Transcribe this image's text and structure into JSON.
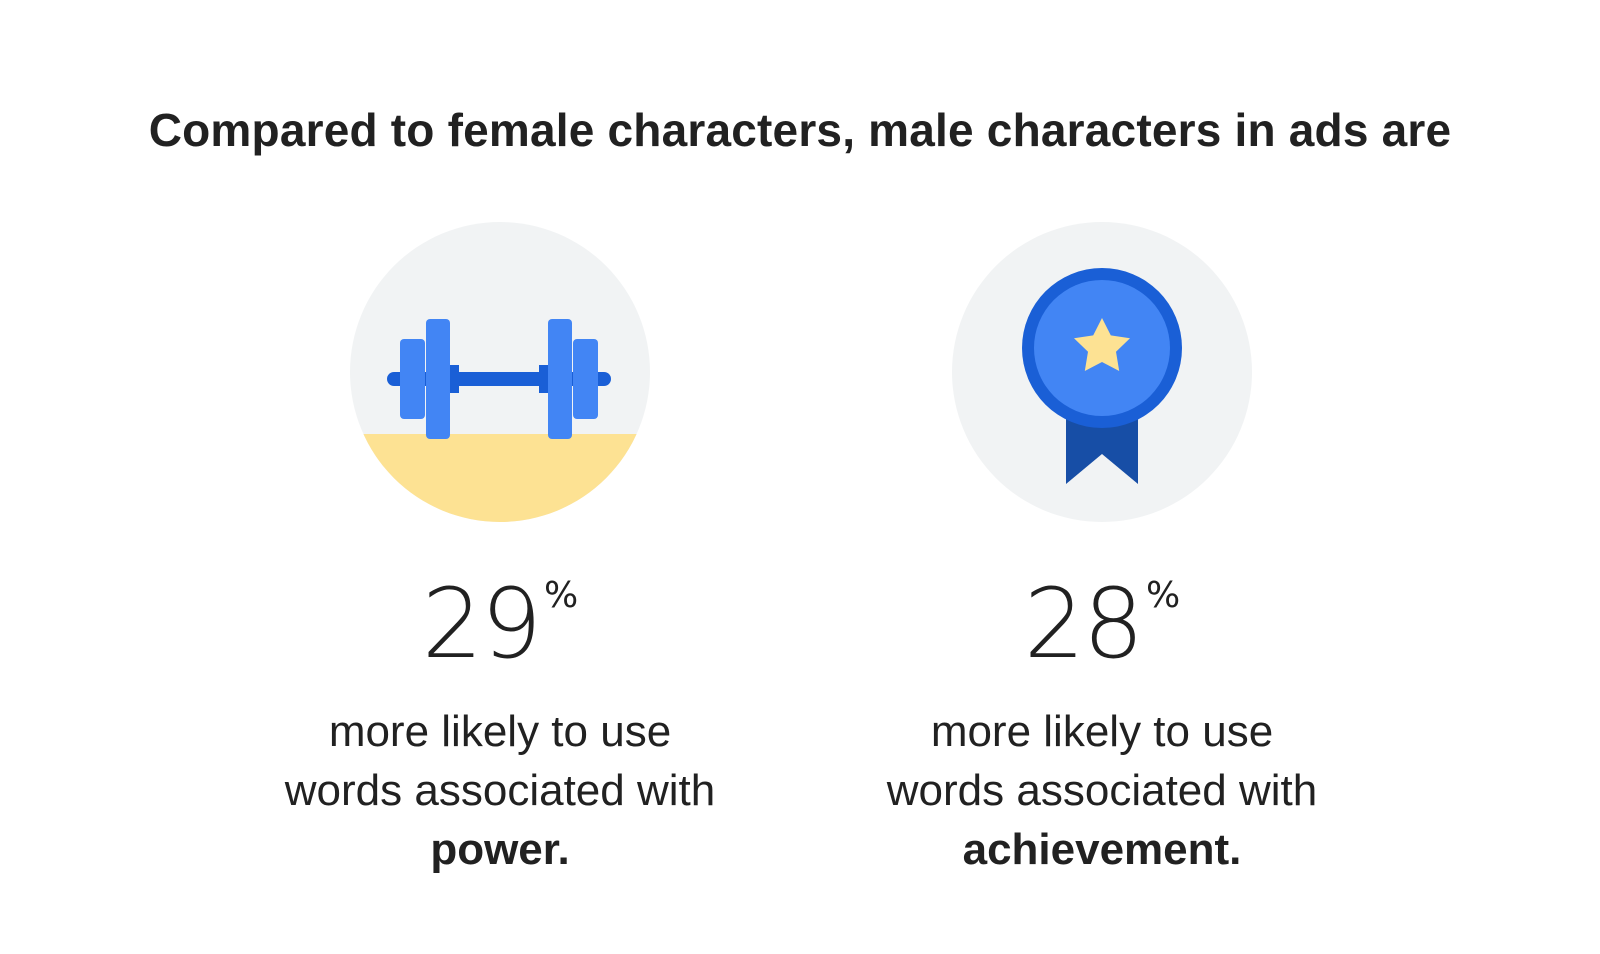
{
  "headline": "Compared to female characters, male characters in ads are",
  "stats": [
    {
      "icon": "dumbbell-icon",
      "value": "29",
      "unit": "%",
      "line1": "more likely to use",
      "line2": "words associated with",
      "keyword": "power."
    },
    {
      "icon": "award-ribbon-icon",
      "value": "28",
      "unit": "%",
      "line1": "more likely to use",
      "line2": "words associated with",
      "keyword": "achievement."
    }
  ],
  "colors": {
    "text": "#212121",
    "circle_bg": "#f1f3f4",
    "blue_light": "#4285f4",
    "blue_dark": "#1a5fd6",
    "navy": "#174ea6",
    "yellow": "#fde293"
  }
}
